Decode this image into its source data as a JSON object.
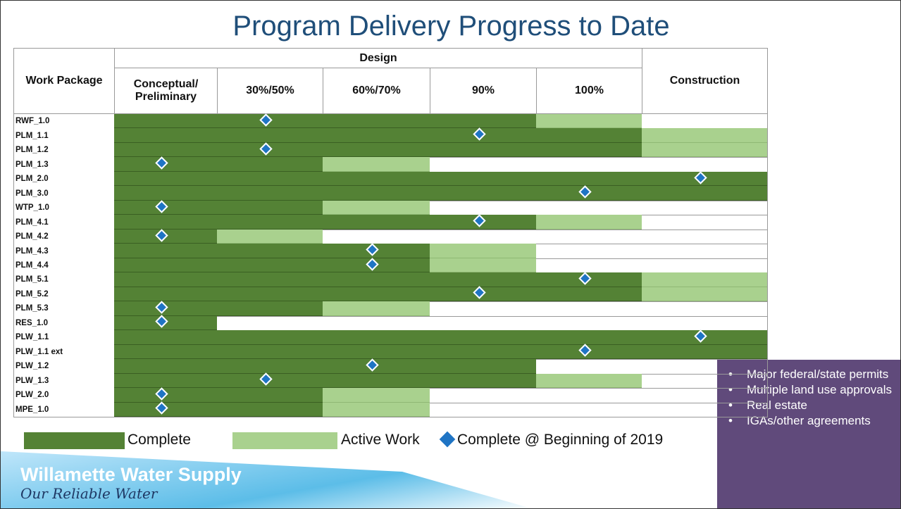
{
  "title": "Program Delivery Progress to Date",
  "table": {
    "work_package_header": "Work Package",
    "group_header": "Design",
    "columns": [
      "Conceptual/ Preliminary",
      "30%/50%",
      "60%/70%",
      "90%",
      "100%",
      "Construction"
    ],
    "rows": [
      {
        "name": "RWF_1.0",
        "complete_through": "90%",
        "active_through": "100%",
        "marker": "30%/50%"
      },
      {
        "name": "PLM_1.1",
        "complete_through": "100%",
        "active_through": "Construction",
        "marker": "90%"
      },
      {
        "name": "PLM_1.2",
        "complete_through": "100%",
        "active_through": "Construction",
        "marker": "30%/50%"
      },
      {
        "name": "PLM_1.3",
        "complete_through": "30%/50%",
        "active_through": "60%/70%",
        "marker": "Conceptual/ Preliminary"
      },
      {
        "name": "PLM_2.0",
        "complete_through": "Construction",
        "active_through": null,
        "marker": "Construction"
      },
      {
        "name": "PLM_3.0",
        "complete_through": "Construction",
        "active_through": null,
        "marker": "100%"
      },
      {
        "name": "WTP_1.0",
        "complete_through": "30%/50%",
        "active_through": "60%/70%",
        "marker": "Conceptual/ Preliminary"
      },
      {
        "name": "PLM_4.1",
        "complete_through": "90%",
        "active_through": "100%",
        "marker": "90%"
      },
      {
        "name": "PLM_4.2",
        "complete_through": "Conceptual/ Preliminary",
        "active_through": "30%/50%",
        "marker": "Conceptual/ Preliminary"
      },
      {
        "name": "PLM_4.3",
        "complete_through": "60%/70%",
        "active_through": "90%",
        "marker": "60%/70%"
      },
      {
        "name": "PLM_4.4",
        "complete_through": "60%/70%",
        "active_through": "90%",
        "marker": "60%/70%"
      },
      {
        "name": "PLM_5.1",
        "complete_through": "100%",
        "active_through": "Construction",
        "marker": "100%"
      },
      {
        "name": "PLM_5.2",
        "complete_through": "100%",
        "active_through": "Construction",
        "marker": "90%"
      },
      {
        "name": "PLM_5.3",
        "complete_through": "30%/50%",
        "active_through": "60%/70%",
        "marker": "Conceptual/ Preliminary"
      },
      {
        "name": "RES_1.0",
        "complete_through": "Conceptual/ Preliminary",
        "active_through": null,
        "marker": "Conceptual/ Preliminary"
      },
      {
        "name": "PLW_1.1",
        "complete_through": "Construction",
        "active_through": null,
        "marker": "Construction"
      },
      {
        "name": "PLW_1.1 ext",
        "complete_through": "Construction",
        "active_through": null,
        "marker": "100%"
      },
      {
        "name": "PLW_1.2",
        "complete_through": "90%",
        "active_through": null,
        "marker": "60%/70%"
      },
      {
        "name": "PLW_1.3",
        "complete_through": "90%",
        "active_through": "100%",
        "marker": "30%/50%"
      },
      {
        "name": "PLW_2.0",
        "complete_through": "30%/50%",
        "active_through": "60%/70%",
        "marker": "Conceptual/ Preliminary"
      },
      {
        "name": "MPE_1.0",
        "complete_through": "30%/50%",
        "active_through": "60%/70%",
        "marker": "Conceptual/ Preliminary"
      }
    ]
  },
  "legend": {
    "complete": "Complete",
    "active": "Active Work",
    "marker": "Complete @ Beginning of 2019"
  },
  "logo": {
    "name": "Willamette Water Supply",
    "tagline": "Our Reliable Water"
  },
  "notes": [
    "Major federal/state permits",
    "Multiple land use approvals",
    "Real estate",
    "IGAs/other agreements"
  ]
}
